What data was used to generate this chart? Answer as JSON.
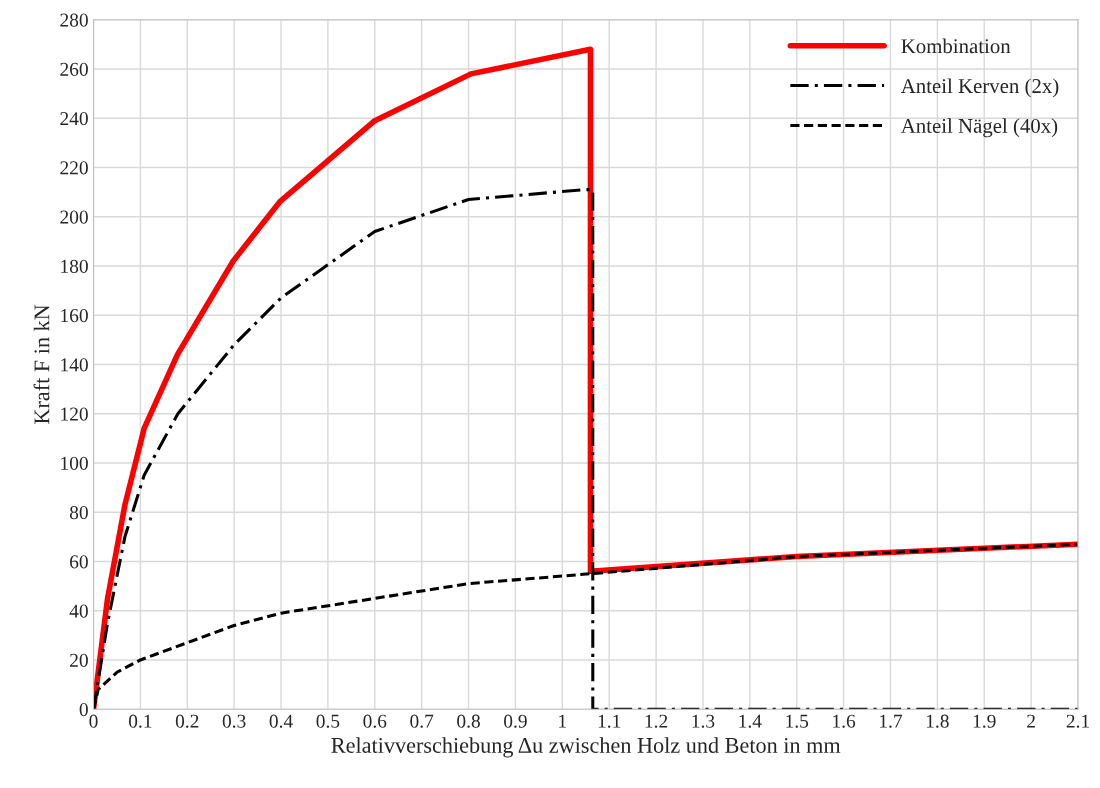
{
  "chart_data": {
    "type": "line",
    "xlabel": "Relativverschiebung Δu zwischen Holz und Beton in mm",
    "ylabel": "Kraft F in kN",
    "xlim": [
      0,
      2.1
    ],
    "xticks": [
      0,
      0.1,
      0.2,
      0.3,
      0.4,
      0.5,
      0.6,
      0.7,
      0.8,
      0.9,
      1,
      1.1,
      1.2,
      1.3,
      1.4,
      1.5,
      1.6,
      1.7,
      1.8,
      1.9,
      2,
      2.1
    ],
    "ylim": [
      0,
      280
    ],
    "yticks": [
      0,
      20,
      40,
      60,
      80,
      100,
      120,
      140,
      160,
      180,
      200,
      220,
      240,
      260,
      280
    ],
    "grid": true,
    "legend": "top right",
    "series": [
      {
        "name": "Kombination",
        "color": "#ff0000",
        "line_style": "solid",
        "x": [
          0,
          0.03,
          0.067,
          0.108,
          0.179,
          0.298,
          0.397,
          0.6,
          0.805,
          1.06,
          1.06,
          1.5,
          2.1
        ],
        "values": [
          0,
          45,
          83,
          114,
          144,
          182,
          206,
          239,
          258,
          268,
          56,
          62,
          67
        ]
      },
      {
        "name": "Anteil Kerven (2x)",
        "color": "#000000",
        "line_style": "dashdot",
        "x": [
          0,
          0.03,
          0.067,
          0.108,
          0.18,
          0.3,
          0.4,
          0.6,
          0.8,
          1.05,
          1.065,
          1.065,
          2.1
        ],
        "values": [
          0,
          35,
          70,
          95,
          120,
          148,
          167,
          194,
          207,
          211,
          211,
          0,
          0
        ]
      },
      {
        "name": "Anteil Nägel (40x)",
        "color": "#000000",
        "line_style": "dashed",
        "x": [
          0,
          0.01,
          0.05,
          0.1,
          0.2,
          0.3,
          0.4,
          0.6,
          0.8,
          1.06,
          1.5,
          2.1
        ],
        "values": [
          0,
          8,
          15,
          20,
          27,
          34,
          39,
          45,
          51,
          55,
          62,
          67
        ]
      }
    ]
  }
}
